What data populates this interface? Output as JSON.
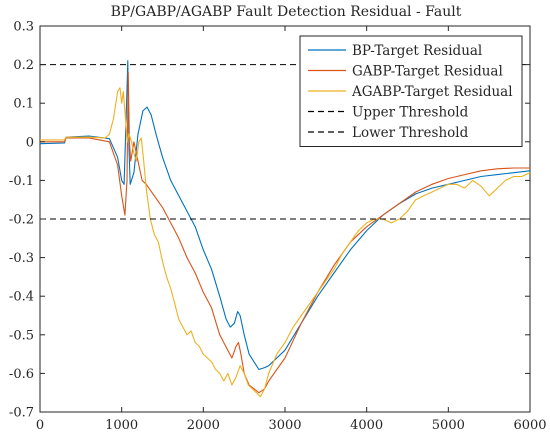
{
  "chart_data": {
    "type": "line",
    "title": "BP/GABP/AGABP Fault Detection Residual - Fault",
    "xlabel": "",
    "ylabel": "",
    "xlim": [
      0,
      6000
    ],
    "ylim": [
      -0.7,
      0.3
    ],
    "grid": false,
    "legend_position": "top-right",
    "x_ticks": [
      "0",
      "1000",
      "2000",
      "3000",
      "4000",
      "5000",
      "6000"
    ],
    "y_ticks": [
      "0.3",
      "0.2",
      "0.1",
      "0",
      "-0.1",
      "-0.2",
      "-0.3",
      "-0.4",
      "-0.5",
      "-0.6",
      "-0.7"
    ],
    "series": [
      {
        "name": "BP-Target Residual",
        "color": "#0072BD",
        "style": "solid",
        "points": [
          [
            0,
            -0.005
          ],
          [
            300,
            -0.003
          ],
          [
            320,
            0.012
          ],
          [
            600,
            0.015
          ],
          [
            850,
            0.008
          ],
          [
            950,
            -0.04
          ],
          [
            1000,
            -0.1
          ],
          [
            1030,
            -0.11
          ],
          [
            1060,
            0.1
          ],
          [
            1075,
            0.21
          ],
          [
            1090,
            -0.02
          ],
          [
            1105,
            -0.11
          ],
          [
            1150,
            -0.08
          ],
          [
            1200,
            0.02
          ],
          [
            1260,
            0.08
          ],
          [
            1310,
            0.09
          ],
          [
            1360,
            0.07
          ],
          [
            1420,
            0.02
          ],
          [
            1500,
            -0.04
          ],
          [
            1600,
            -0.1
          ],
          [
            1700,
            -0.14
          ],
          [
            1800,
            -0.18
          ],
          [
            1900,
            -0.22
          ],
          [
            2000,
            -0.28
          ],
          [
            2100,
            -0.33
          ],
          [
            2200,
            -0.4
          ],
          [
            2280,
            -0.46
          ],
          [
            2330,
            -0.48
          ],
          [
            2380,
            -0.47
          ],
          [
            2420,
            -0.44
          ],
          [
            2450,
            -0.45
          ],
          [
            2500,
            -0.5
          ],
          [
            2560,
            -0.55
          ],
          [
            2620,
            -0.57
          ],
          [
            2680,
            -0.59
          ],
          [
            2750,
            -0.585
          ],
          [
            2800,
            -0.58
          ],
          [
            2850,
            -0.57
          ],
          [
            3000,
            -0.54
          ],
          [
            3200,
            -0.47
          ],
          [
            3400,
            -0.4
          ],
          [
            3600,
            -0.34
          ],
          [
            3800,
            -0.28
          ],
          [
            4000,
            -0.23
          ],
          [
            4200,
            -0.19
          ],
          [
            4400,
            -0.16
          ],
          [
            4600,
            -0.135
          ],
          [
            4800,
            -0.12
          ],
          [
            5000,
            -0.11
          ],
          [
            5200,
            -0.1
          ],
          [
            5400,
            -0.09
          ],
          [
            5600,
            -0.085
          ],
          [
            5800,
            -0.08
          ],
          [
            6000,
            -0.075
          ]
        ]
      },
      {
        "name": "GABP-Target Residual",
        "color": "#D95319",
        "style": "solid",
        "points": [
          [
            0,
            0.0
          ],
          [
            300,
            0.0
          ],
          [
            320,
            0.01
          ],
          [
            600,
            0.01
          ],
          [
            850,
            0.0
          ],
          [
            950,
            -0.06
          ],
          [
            1000,
            -0.14
          ],
          [
            1040,
            -0.19
          ],
          [
            1065,
            -0.1
          ],
          [
            1080,
            0.18
          ],
          [
            1095,
            0.0
          ],
          [
            1110,
            -0.05
          ],
          [
            1150,
            0.0
          ],
          [
            1200,
            -0.05
          ],
          [
            1250,
            -0.1
          ],
          [
            1300,
            -0.11
          ],
          [
            1400,
            -0.14
          ],
          [
            1500,
            -0.17
          ],
          [
            1600,
            -0.21
          ],
          [
            1700,
            -0.25
          ],
          [
            1800,
            -0.3
          ],
          [
            1900,
            -0.34
          ],
          [
            2000,
            -0.39
          ],
          [
            2100,
            -0.43
          ],
          [
            2200,
            -0.5
          ],
          [
            2300,
            -0.54
          ],
          [
            2350,
            -0.56
          ],
          [
            2400,
            -0.53
          ],
          [
            2430,
            -0.52
          ],
          [
            2460,
            -0.55
          ],
          [
            2500,
            -0.6
          ],
          [
            2560,
            -0.63
          ],
          [
            2620,
            -0.64
          ],
          [
            2680,
            -0.65
          ],
          [
            2750,
            -0.64
          ],
          [
            2800,
            -0.62
          ],
          [
            2900,
            -0.59
          ],
          [
            3000,
            -0.56
          ],
          [
            3200,
            -0.47
          ],
          [
            3400,
            -0.39
          ],
          [
            3600,
            -0.32
          ],
          [
            3800,
            -0.26
          ],
          [
            4000,
            -0.22
          ],
          [
            4200,
            -0.19
          ],
          [
            4400,
            -0.16
          ],
          [
            4600,
            -0.13
          ],
          [
            4800,
            -0.11
          ],
          [
            5000,
            -0.095
          ],
          [
            5200,
            -0.085
          ],
          [
            5400,
            -0.075
          ],
          [
            5600,
            -0.07
          ],
          [
            5800,
            -0.068
          ],
          [
            6000,
            -0.068
          ]
        ]
      },
      {
        "name": "AGABP-Target Residual",
        "color": "#EDB120",
        "style": "solid",
        "points": [
          [
            0,
            0.005
          ],
          [
            300,
            0.005
          ],
          [
            320,
            0.012
          ],
          [
            600,
            0.012
          ],
          [
            800,
            0.01
          ],
          [
            850,
            0.02
          ],
          [
            900,
            0.06
          ],
          [
            950,
            0.13
          ],
          [
            980,
            0.14
          ],
          [
            1000,
            0.1
          ],
          [
            1020,
            0.13
          ],
          [
            1050,
            0.05
          ],
          [
            1070,
            0.0
          ],
          [
            1090,
            0.02
          ],
          [
            1120,
            0.0
          ],
          [
            1150,
            -0.03
          ],
          [
            1180,
            -0.05
          ],
          [
            1210,
            0.0
          ],
          [
            1240,
            0.01
          ],
          [
            1270,
            -0.05
          ],
          [
            1300,
            -0.12
          ],
          [
            1350,
            -0.2
          ],
          [
            1400,
            -0.24
          ],
          [
            1450,
            -0.26
          ],
          [
            1500,
            -0.31
          ],
          [
            1550,
            -0.35
          ],
          [
            1600,
            -0.38
          ],
          [
            1650,
            -0.42
          ],
          [
            1700,
            -0.46
          ],
          [
            1750,
            -0.48
          ],
          [
            1800,
            -0.5
          ],
          [
            1850,
            -0.49
          ],
          [
            1900,
            -0.52
          ],
          [
            1950,
            -0.53
          ],
          [
            2000,
            -0.55
          ],
          [
            2050,
            -0.56
          ],
          [
            2100,
            -0.57
          ],
          [
            2150,
            -0.59
          ],
          [
            2200,
            -0.6
          ],
          [
            2250,
            -0.62
          ],
          [
            2300,
            -0.6
          ],
          [
            2350,
            -0.63
          ],
          [
            2400,
            -0.61
          ],
          [
            2450,
            -0.58
          ],
          [
            2500,
            -0.6
          ],
          [
            2550,
            -0.63
          ],
          [
            2600,
            -0.64
          ],
          [
            2650,
            -0.65
          ],
          [
            2700,
            -0.66
          ],
          [
            2750,
            -0.64
          ],
          [
            2800,
            -0.6
          ],
          [
            2900,
            -0.55
          ],
          [
            3000,
            -0.52
          ],
          [
            3100,
            -0.48
          ],
          [
            3200,
            -0.45
          ],
          [
            3300,
            -0.42
          ],
          [
            3400,
            -0.39
          ],
          [
            3500,
            -0.36
          ],
          [
            3600,
            -0.33
          ],
          [
            3700,
            -0.29
          ],
          [
            3800,
            -0.26
          ],
          [
            3900,
            -0.23
          ],
          [
            4000,
            -0.21
          ],
          [
            4100,
            -0.2
          ],
          [
            4200,
            -0.2
          ],
          [
            4300,
            -0.21
          ],
          [
            4400,
            -0.2
          ],
          [
            4500,
            -0.18
          ],
          [
            4600,
            -0.15
          ],
          [
            4700,
            -0.14
          ],
          [
            4800,
            -0.13
          ],
          [
            4900,
            -0.12
          ],
          [
            5000,
            -0.11
          ],
          [
            5100,
            -0.11
          ],
          [
            5200,
            -0.12
          ],
          [
            5300,
            -0.1
          ],
          [
            5400,
            -0.115
          ],
          [
            5500,
            -0.14
          ],
          [
            5600,
            -0.12
          ],
          [
            5700,
            -0.1
          ],
          [
            5800,
            -0.09
          ],
          [
            5900,
            -0.09
          ],
          [
            6000,
            -0.08
          ]
        ]
      },
      {
        "name": "Upper Threshold",
        "color": "#000000",
        "style": "dashed",
        "points": [
          [
            0,
            0.2
          ],
          [
            6000,
            0.2
          ]
        ]
      },
      {
        "name": "Lower Threshold",
        "color": "#000000",
        "style": "dashed",
        "points": [
          [
            0,
            -0.2
          ],
          [
            6000,
            -0.2
          ]
        ]
      }
    ]
  }
}
